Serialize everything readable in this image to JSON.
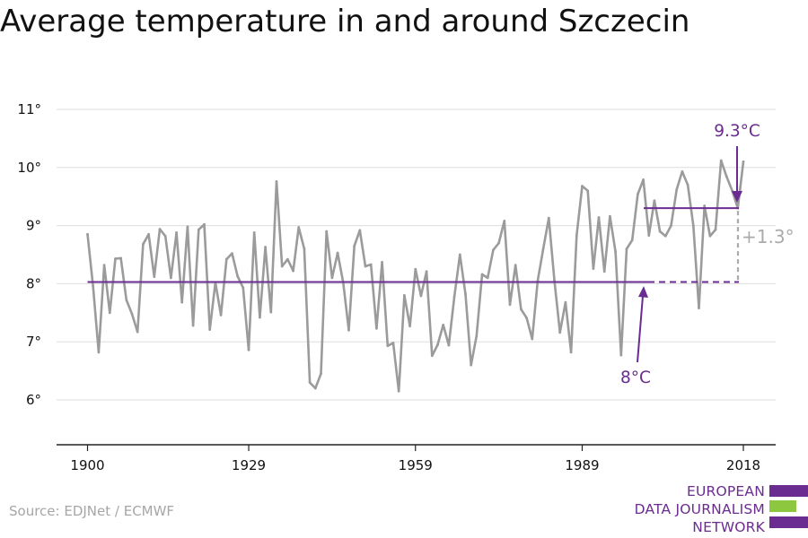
{
  "title": "Average temperature in and around Szczecin",
  "source": "Source: EDJNet / ECMWF",
  "logo": {
    "lines": [
      "EUROPEAN",
      "DATA JOURNALISM",
      "NETWORK"
    ],
    "colors": {
      "purple": "#6b2c91",
      "green": "#8dc63f"
    }
  },
  "colors": {
    "series": "#9b9b9b",
    "reference": "#6b2c91",
    "difference": "#aaaaaa",
    "grid": "#dddddd",
    "axis": "#222222",
    "text": "#111111"
  },
  "chart_data": {
    "type": "line",
    "title": "Average temperature in and around Szczecin",
    "xlabel": "",
    "ylabel": "",
    "xlim": [
      1900,
      2018
    ],
    "ylim": [
      5.2,
      11.3
    ],
    "xticks": [
      1900,
      1929,
      1959,
      1989,
      2018
    ],
    "xtick_labels": [
      "1900",
      "1929",
      "1959",
      "1989",
      "2018"
    ],
    "yticks": [
      6,
      7,
      8,
      9,
      10,
      11
    ],
    "ytick_labels": [
      "6°",
      "7°",
      "8°",
      "9°",
      "10°",
      "11°"
    ],
    "grid": true,
    "series": [
      {
        "x": [
          1900,
          1901,
          1902,
          1903,
          1904,
          1905,
          1906,
          1907,
          1908,
          1909,
          1910,
          1911,
          1912,
          1913,
          1914,
          1915,
          1916,
          1917,
          1918,
          1919,
          1920,
          1921,
          1922,
          1923,
          1924,
          1925,
          1926,
          1927,
          1928,
          1929,
          1930,
          1931,
          1932,
          1933,
          1934,
          1935,
          1936,
          1937,
          1938,
          1939,
          1940,
          1941,
          1942,
          1943,
          1944,
          1945,
          1946,
          1947,
          1948,
          1949,
          1950,
          1951,
          1952,
          1953,
          1954,
          1955,
          1956,
          1957,
          1958,
          1959,
          1960,
          1961,
          1962,
          1963,
          1964,
          1965,
          1966,
          1967,
          1968,
          1969,
          1970,
          1971,
          1972,
          1973,
          1974,
          1975,
          1976,
          1977,
          1978,
          1979,
          1980,
          1981,
          1982,
          1983,
          1984,
          1985,
          1986,
          1987,
          1988,
          1989,
          1990,
          1991,
          1992,
          1993,
          1994,
          1995,
          1996,
          1997,
          1998,
          1999,
          2000,
          2001,
          2002,
          2003,
          2004,
          2005,
          2006,
          2007,
          2008,
          2009,
          2010,
          2011,
          2012,
          2013,
          2014,
          2015,
          2016,
          2017,
          2018
        ],
        "values": [
          8.85,
          7.95,
          6.82,
          8.32,
          7.5,
          8.43,
          8.44,
          7.72,
          7.48,
          7.17,
          8.68,
          8.85,
          8.12,
          8.94,
          8.82,
          8.1,
          8.88,
          7.68,
          8.98,
          7.28,
          8.93,
          9.02,
          7.21,
          8.02,
          7.46,
          8.42,
          8.52,
          8.13,
          7.93,
          6.86,
          8.88,
          7.42,
          8.63,
          7.51,
          9.76,
          8.3,
          8.42,
          8.22,
          8.97,
          8.6,
          6.3,
          6.2,
          6.45,
          8.9,
          8.1,
          8.53,
          8.02,
          7.2,
          8.65,
          8.92,
          8.3,
          8.33,
          7.23,
          8.37,
          6.93,
          6.98,
          6.15,
          7.8,
          7.27,
          8.25,
          7.79,
          8.21,
          6.76,
          6.95,
          7.29,
          6.94,
          7.78,
          8.5,
          7.82,
          6.6,
          7.1,
          8.16,
          8.1,
          8.58,
          8.7,
          9.08,
          7.64,
          8.32,
          7.56,
          7.41,
          7.05,
          8.05,
          8.6,
          9.13,
          8.06,
          7.16,
          7.68,
          6.82,
          8.83,
          9.68,
          9.6,
          8.26,
          9.14,
          8.21,
          9.16,
          8.55,
          6.77,
          8.6,
          8.75,
          9.54,
          9.79,
          8.83,
          9.43,
          8.9,
          8.82,
          9.0,
          9.62,
          9.93,
          9.7,
          9.0,
          7.58,
          9.34,
          8.82,
          8.93,
          10.12,
          9.84,
          9.6,
          9.3,
          10.1
        ]
      }
    ],
    "reference_lines": [
      {
        "label": "8°C",
        "value": 8.03,
        "x_start": 1900,
        "x_end": 2018
      },
      {
        "label": "9.3°C",
        "value": 9.3,
        "x_start": 2003,
        "x_end": 2018
      }
    ],
    "difference_label": "+1.3°"
  }
}
